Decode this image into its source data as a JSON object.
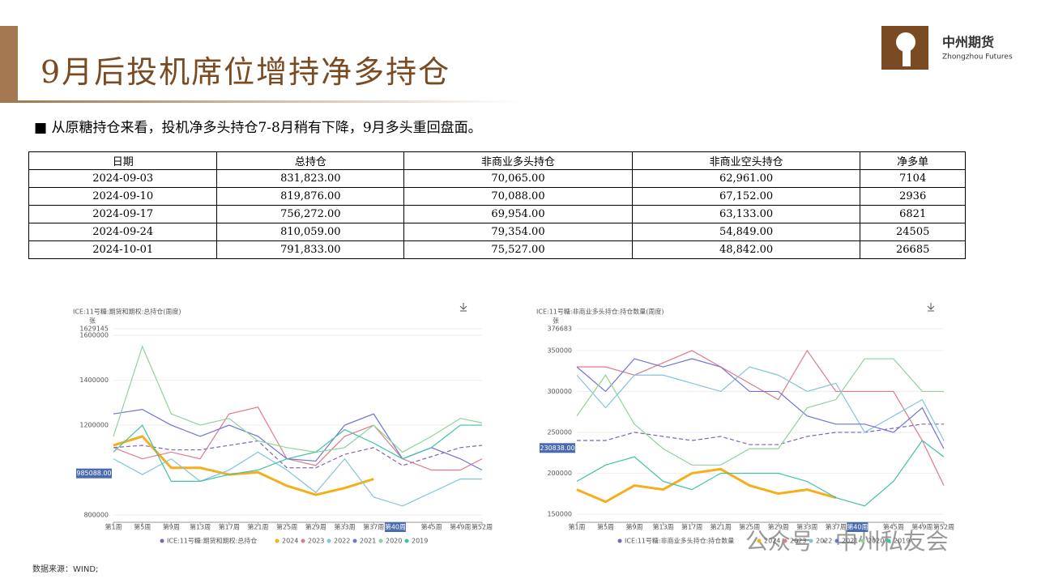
{
  "header": {
    "title": "9月后投机席位增持净多持仓",
    "logo_cn": "中州期货",
    "logo_en": "Zhongzhou Futures"
  },
  "bullet": "从原糖持仓来看，投机净多头持仓7-8月稍有下降，9月多头重回盘面。",
  "table": {
    "columns": [
      "日期",
      "总持仓",
      "非商业多头持仓",
      "非商业空头持仓",
      "净多单"
    ],
    "rows": [
      [
        "2024-09-03",
        "831,823.00",
        "70,065.00",
        "62,961.00",
        "7104"
      ],
      [
        "2024-09-10",
        "819,876.00",
        "70,088.00",
        "67,152.00",
        "2936"
      ],
      [
        "2024-09-17",
        "756,272.00",
        "69,954.00",
        "63,133.00",
        "6821"
      ],
      [
        "2024-09-24",
        "810,059.00",
        "79,354.00",
        "54,849.00",
        "24505"
      ],
      [
        "2024-10-01",
        "791,833.00",
        "75,527.00",
        "48,842.00",
        "26685"
      ]
    ]
  },
  "charts": [
    {
      "type": "line",
      "title": "ICE:11号糖:期货和期权:总持仓(周度)",
      "unit": "张",
      "x": [
        1,
        5,
        9,
        13,
        17,
        21,
        25,
        29,
        33,
        37,
        41,
        45,
        49,
        52
      ],
      "xlim": [
        1,
        52
      ],
      "xticks": [
        {
          "value": 1,
          "label": "第1周"
        },
        {
          "value": 5,
          "label": "第5周"
        },
        {
          "value": 9,
          "label": "第9周"
        },
        {
          "value": 13,
          "label": "第13周"
        },
        {
          "value": 17,
          "label": "第17周"
        },
        {
          "value": 21,
          "label": "第21周"
        },
        {
          "value": 25,
          "label": "第25周"
        },
        {
          "value": 29,
          "label": "第29周"
        },
        {
          "value": 33,
          "label": "第33周"
        },
        {
          "value": 37,
          "label": "第37周"
        },
        {
          "value": 45,
          "label": "第45周"
        },
        {
          "value": 49,
          "label": "第49周"
        },
        {
          "value": 52,
          "label": "第52周"
        }
      ],
      "x_marker": {
        "value": 40,
        "label": "第40周"
      },
      "ylim": [
        767568,
        1629145
      ],
      "yticks": [
        800000,
        1200000,
        1400000,
        1600000,
        1629145
      ],
      "y_marker": {
        "value": 985088,
        "label": "985088.00"
      },
      "series": [
        {
          "name": "ICE:11号糖:期货和期权:总持仓",
          "color": "#7e63b8",
          "dashed": true,
          "values": [
            1100000,
            1110000,
            1090000,
            1090000,
            1110000,
            1130000,
            1010000,
            1010000,
            1070000,
            1100000,
            1020000,
            1060000,
            1100000,
            1110000
          ]
        },
        {
          "name": "2024",
          "color": "#f5ae1c",
          "width": 3,
          "values": [
            1110000,
            1150000,
            1010000,
            1010000,
            980000,
            990000,
            930000,
            890000,
            920000,
            960000,
            null,
            null,
            null,
            null
          ]
        },
        {
          "name": "2023",
          "color": "#e07a8a",
          "values": [
            1100000,
            1050000,
            1080000,
            1050000,
            1250000,
            1280000,
            1050000,
            1020000,
            1150000,
            1200000,
            1050000,
            1000000,
            1000000,
            1050000
          ]
        },
        {
          "name": "2022",
          "color": "#82c4de",
          "values": [
            1050000,
            980000,
            1050000,
            950000,
            1000000,
            1080000,
            1000000,
            900000,
            1050000,
            880000,
            840000,
            900000,
            960000,
            960000
          ]
        },
        {
          "name": "2021",
          "color": "#6f74d8",
          "values": [
            1250000,
            1270000,
            1200000,
            1150000,
            1200000,
            1150000,
            1050000,
            1040000,
            1200000,
            1250000,
            1050000,
            1100000,
            1050000,
            1000000
          ]
        },
        {
          "name": "2020",
          "color": "#8fd39a",
          "values": [
            1150000,
            1550000,
            1250000,
            1200000,
            1230000,
            1130000,
            1100000,
            1080000,
            1100000,
            1200000,
            1080000,
            1150000,
            1230000,
            1210000
          ]
        },
        {
          "name": "2019",
          "color": "#3fc2a5",
          "values": [
            1080000,
            1200000,
            950000,
            950000,
            980000,
            1000000,
            1050000,
            1080000,
            1180000,
            1120000,
            1050000,
            1100000,
            1200000,
            1200000
          ]
        }
      ]
    },
    {
      "type": "line",
      "title": "ICE:11号糖:非商业多头持仓:持仓数量(周度)",
      "unit": "张",
      "x": [
        1,
        5,
        9,
        13,
        17,
        21,
        25,
        29,
        33,
        37,
        41,
        45,
        49,
        52
      ],
      "xlim": [
        1,
        52
      ],
      "xticks": [
        {
          "value": 1,
          "label": "第1周"
        },
        {
          "value": 5,
          "label": "第5周"
        },
        {
          "value": 9,
          "label": "第9周"
        },
        {
          "value": 13,
          "label": "第13周"
        },
        {
          "value": 17,
          "label": "第17周"
        },
        {
          "value": 21,
          "label": "第21周"
        },
        {
          "value": 25,
          "label": "第25周"
        },
        {
          "value": 29,
          "label": "第29周"
        },
        {
          "value": 33,
          "label": "第33周"
        },
        {
          "value": 37,
          "label": "第37周"
        },
        {
          "value": 45,
          "label": "第45周"
        },
        {
          "value": 49,
          "label": "第49周"
        },
        {
          "value": 52,
          "label": "第52周"
        }
      ],
      "x_marker": {
        "value": 40,
        "label": "第40周"
      },
      "ylim": [
        140000,
        376683
      ],
      "yticks": [
        150000,
        200000,
        250000,
        300000,
        350000,
        376683
      ],
      "y_marker": {
        "value": 230838,
        "label": "230838.00"
      },
      "series": [
        {
          "name": "ICE:11号糖:非商业多头持仓:持仓数量",
          "color": "#7e63b8",
          "dashed": true,
          "values": [
            240000,
            240000,
            250000,
            245000,
            240000,
            245000,
            235000,
            235000,
            245000,
            250000,
            250000,
            255000,
            260000,
            260000
          ]
        },
        {
          "name": "2024",
          "color": "#f5ae1c",
          "width": 3,
          "values": [
            180000,
            165000,
            185000,
            180000,
            200000,
            205000,
            185000,
            175000,
            180000,
            170000,
            null,
            null,
            null,
            null
          ]
        },
        {
          "name": "2023",
          "color": "#e07a8a",
          "values": [
            330000,
            330000,
            320000,
            335000,
            350000,
            330000,
            310000,
            290000,
            350000,
            300000,
            300000,
            300000,
            240000,
            185000
          ]
        },
        {
          "name": "2022",
          "color": "#82c4de",
          "values": [
            320000,
            280000,
            320000,
            320000,
            310000,
            300000,
            330000,
            320000,
            300000,
            310000,
            250000,
            270000,
            290000,
            240000
          ]
        },
        {
          "name": "2021",
          "color": "#6f74d8",
          "values": [
            330000,
            300000,
            340000,
            330000,
            340000,
            330000,
            300000,
            300000,
            270000,
            260000,
            260000,
            250000,
            280000,
            230000
          ]
        },
        {
          "name": "2020",
          "color": "#8fd39a",
          "values": [
            270000,
            320000,
            260000,
            230000,
            210000,
            210000,
            230000,
            230000,
            280000,
            290000,
            340000,
            340000,
            300000,
            300000
          ]
        },
        {
          "name": "2019",
          "color": "#3fc2a5",
          "values": [
            190000,
            210000,
            220000,
            190000,
            180000,
            200000,
            200000,
            200000,
            190000,
            170000,
            160000,
            190000,
            240000,
            220000
          ]
        }
      ]
    }
  ],
  "footer": {
    "source": "数据来源：WIND;",
    "watermark": "公众号 · 中州私友会"
  }
}
